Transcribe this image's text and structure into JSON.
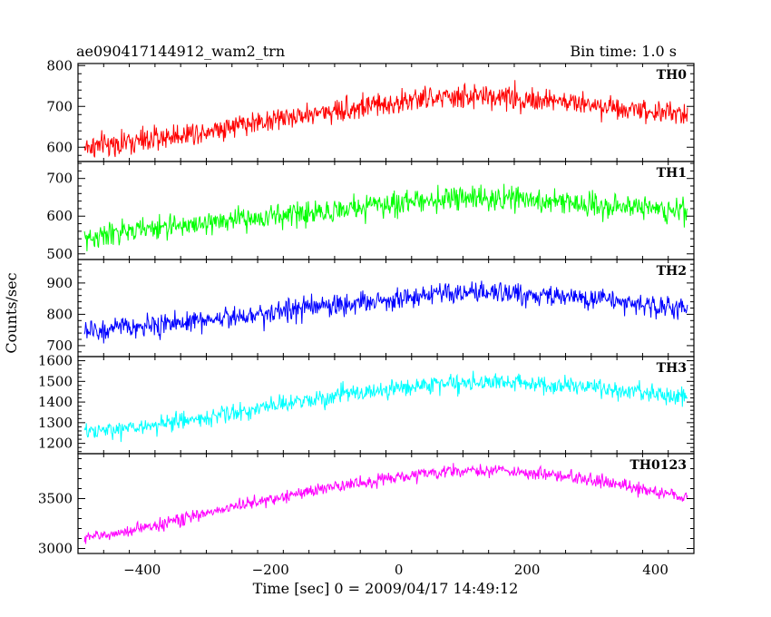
{
  "header": {
    "left_title": "ae090417144912_wam2_trn",
    "right_title": "Bin time: 1.0 s"
  },
  "chart_data": [
    {
      "type": "line",
      "series": [
        {
          "name": "TH0",
          "color": "#ff0000"
        }
      ],
      "x_range": [
        -500,
        460
      ],
      "ylim": [
        565,
        805
      ],
      "yticks": [
        600,
        700,
        800
      ],
      "ytick_labels": [
        "600",
        "700",
        "800"
      ],
      "trend": {
        "x": [
          -490,
          -400,
          -250,
          -100,
          50,
          150,
          300,
          450
        ],
        "y": [
          600,
          615,
          655,
          690,
          720,
          725,
          705,
          680
        ]
      },
      "noise": 38,
      "tag": "TH0"
    },
    {
      "type": "line",
      "series": [
        {
          "name": "TH1",
          "color": "#00ff00"
        }
      ],
      "x_range": [
        -500,
        460
      ],
      "ylim": [
        485,
        745
      ],
      "yticks": [
        500,
        600,
        700
      ],
      "ytick_labels": [
        "500",
        "600",
        "700"
      ],
      "trend": {
        "x": [
          -490,
          -400,
          -250,
          -100,
          50,
          150,
          300,
          450
        ],
        "y": [
          540,
          565,
          590,
          615,
          645,
          648,
          632,
          615
        ]
      },
      "noise": 40,
      "tag": "TH1"
    },
    {
      "type": "line",
      "series": [
        {
          "name": "TH2",
          "color": "#0000ff"
        }
      ],
      "x_range": [
        -500,
        460
      ],
      "ylim": [
        665,
        975
      ],
      "yticks": [
        700,
        800,
        900
      ],
      "ytick_labels": [
        "700",
        "800",
        "900"
      ],
      "trend": {
        "x": [
          -490,
          -400,
          -250,
          -100,
          50,
          150,
          300,
          450
        ],
        "y": [
          745,
          760,
          795,
          830,
          860,
          870,
          850,
          815
        ]
      },
      "noise": 45,
      "tag": "TH2"
    },
    {
      "type": "line",
      "series": [
        {
          "name": "TH3",
          "color": "#00ffff"
        }
      ],
      "x_range": [
        -500,
        460
      ],
      "ylim": [
        1150,
        1620
      ],
      "yticks": [
        1200,
        1300,
        1400,
        1500,
        1600
      ],
      "ytick_labels": [
        "1200",
        "1300",
        "1400",
        "1500",
        "1600"
      ],
      "trend": {
        "x": [
          -490,
          -400,
          -250,
          -100,
          50,
          150,
          300,
          450
        ],
        "y": [
          1250,
          1280,
          1350,
          1430,
          1485,
          1500,
          1470,
          1420
        ]
      },
      "noise": 55,
      "tag": "TH3"
    },
    {
      "type": "line",
      "series": [
        {
          "name": "TH0123",
          "color": "#ff00ff"
        }
      ],
      "x_range": [
        -500,
        460
      ],
      "ylim": [
        2950,
        3950
      ],
      "yticks": [
        3000,
        3500
      ],
      "ytick_labels": [
        "3000",
        "3500"
      ],
      "trend": {
        "x": [
          -490,
          -400,
          -250,
          -100,
          50,
          150,
          300,
          450
        ],
        "y": [
          3100,
          3200,
          3430,
          3620,
          3760,
          3790,
          3690,
          3510
        ]
      },
      "noise": 80,
      "tag": "TH0123"
    }
  ],
  "x_axis": {
    "ticks": [
      -400,
      -200,
      0,
      200,
      400
    ],
    "tick_labels": [
      "−400",
      "−200",
      "0",
      "200",
      "400"
    ],
    "label": "Time [sec] 0 = 2009/04/17 14:49:12"
  },
  "y_axis": {
    "label": "Counts/sec"
  }
}
